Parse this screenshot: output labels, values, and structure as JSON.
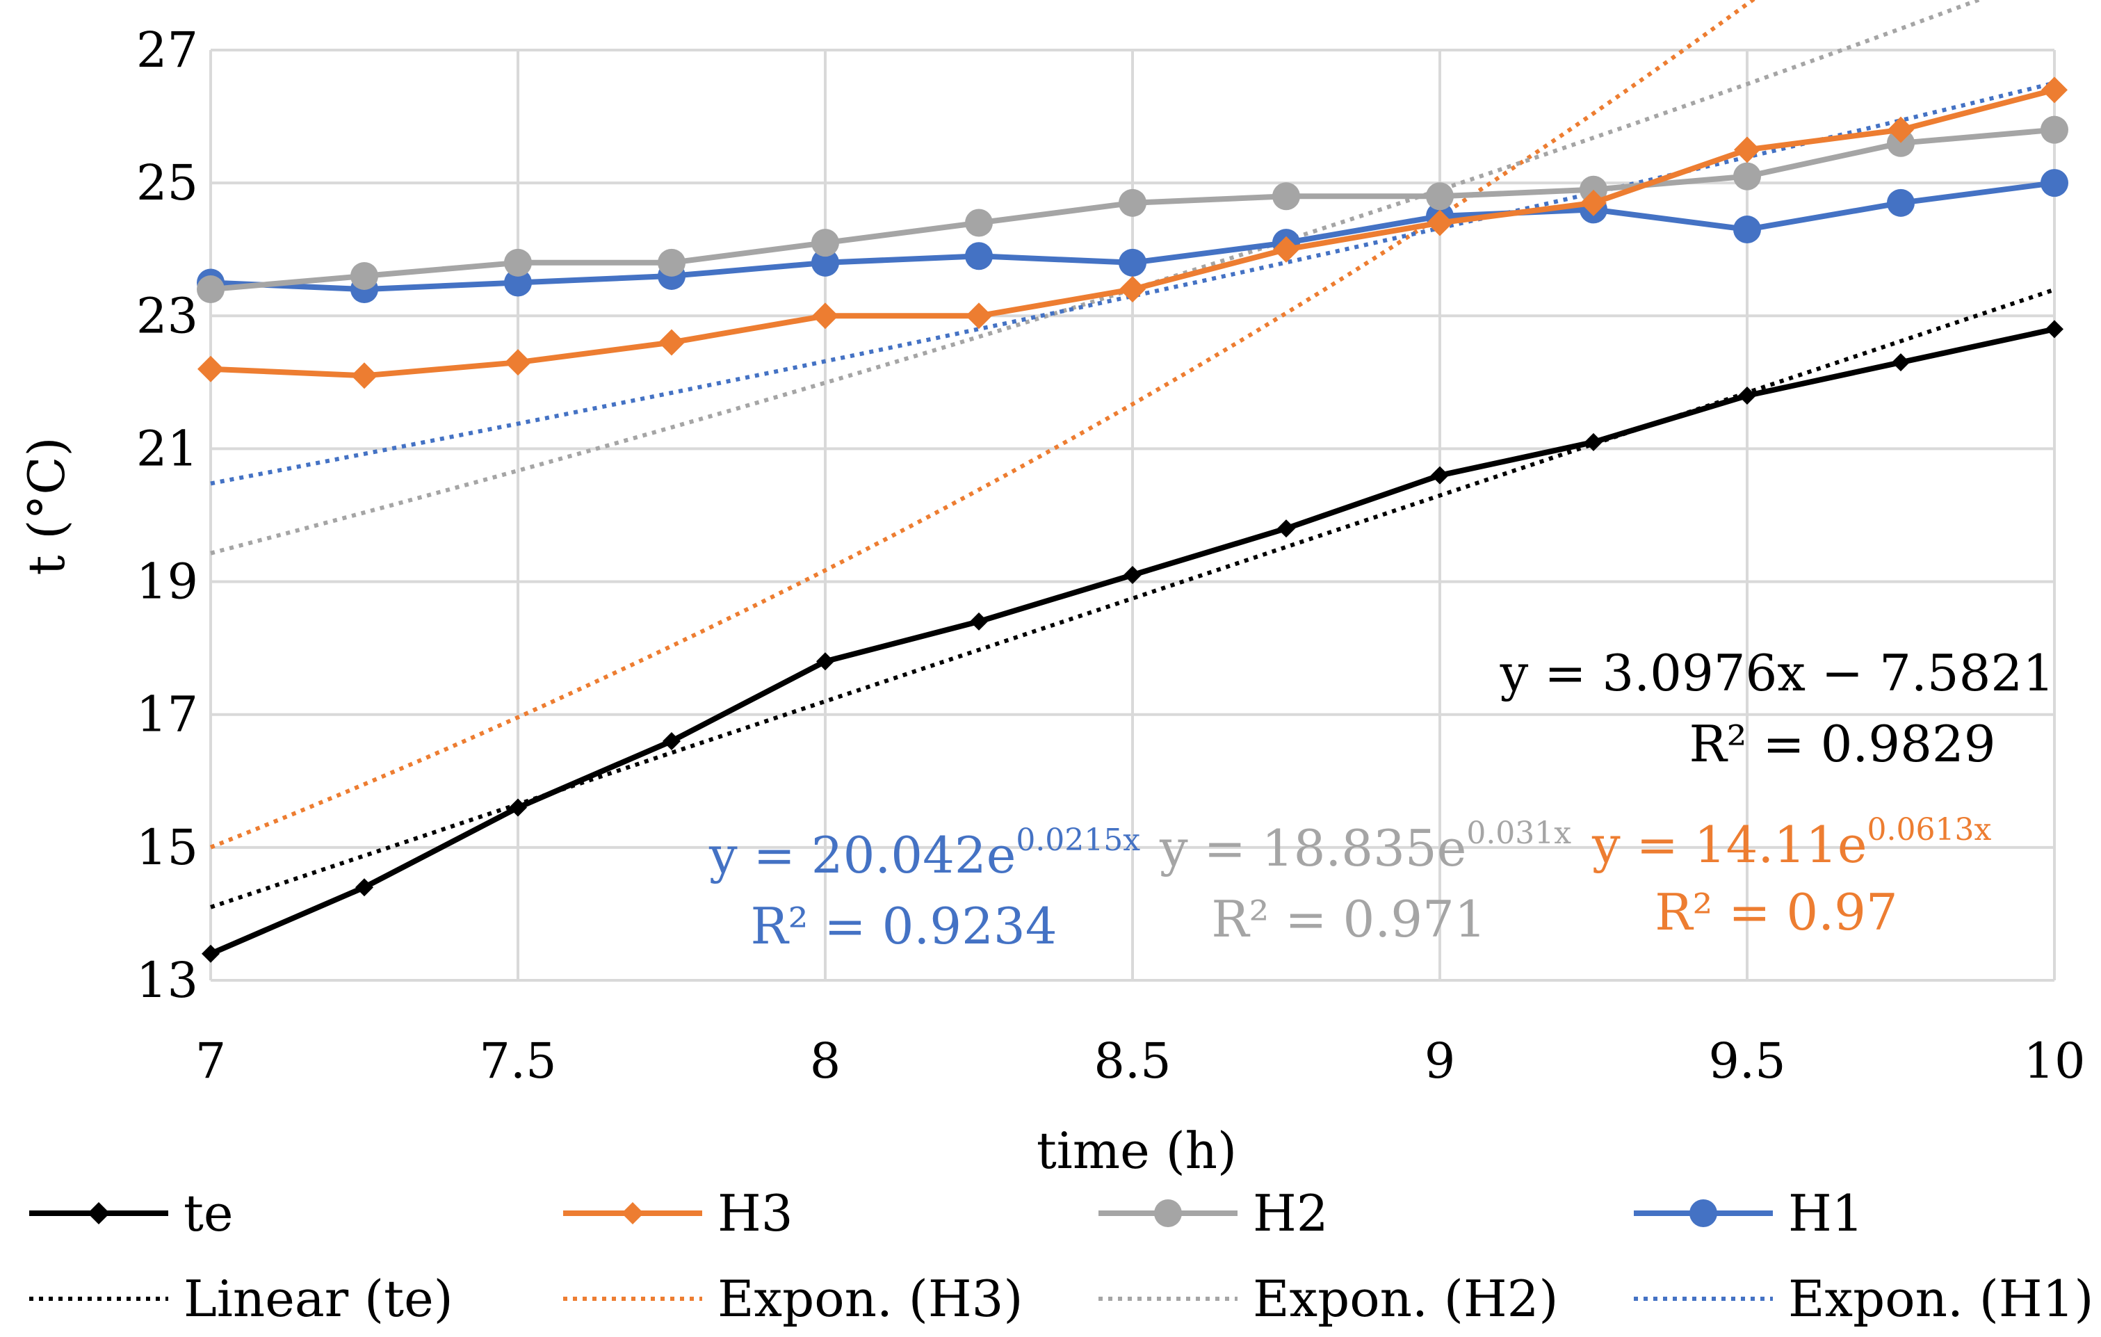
{
  "chart_data": {
    "type": "line",
    "title": "",
    "xlabel": "time (h)",
    "ylabel": "t (°C)",
    "xlim": [
      7,
      10
    ],
    "ylim": [
      13,
      27
    ],
    "xticks": [
      "7",
      "7.5",
      "8",
      "8.5",
      "9",
      "9.5",
      "10"
    ],
    "yticks": [
      "13",
      "15",
      "17",
      "19",
      "21",
      "23",
      "25",
      "27"
    ],
    "grid": true,
    "x": [
      7,
      7.25,
      7.5,
      7.75,
      8,
      8.25,
      8.5,
      8.75,
      9,
      9.25,
      9.5,
      9.75,
      10
    ],
    "series": [
      {
        "name": "te",
        "color": "#000000",
        "marker": "diamond",
        "values": [
          13.4,
          14.4,
          15.6,
          16.6,
          17.8,
          18.4,
          19.1,
          19.8,
          20.6,
          21.1,
          21.8,
          22.3,
          22.8
        ]
      },
      {
        "name": "H3",
        "color": "#ED7D31",
        "marker": "diamond",
        "values": [
          22.2,
          22.1,
          22.3,
          22.6,
          23.0,
          23.0,
          23.4,
          24.0,
          24.4,
          24.7,
          25.5,
          25.8,
          26.4
        ]
      },
      {
        "name": "H2",
        "color": "#A5A5A5",
        "marker": "circle",
        "values": [
          23.4,
          23.6,
          23.8,
          23.8,
          24.1,
          24.4,
          24.7,
          24.8,
          24.8,
          24.9,
          25.1,
          25.6,
          25.8
        ]
      },
      {
        "name": "H1",
        "color": "#4472C4",
        "marker": "circle",
        "values": [
          23.5,
          23.4,
          23.5,
          23.6,
          23.8,
          23.9,
          23.8,
          24.1,
          24.5,
          24.6,
          24.3,
          24.7,
          25.0
        ]
      }
    ],
    "trendlines": [
      {
        "name": "Linear (te)",
        "of": "te",
        "kind": "linear",
        "color": "#000000",
        "a": 3.0976,
        "b": -7.5821,
        "equation": "y = 3.0976x − 7.5821",
        "r2": "R² = 0.9829"
      },
      {
        "name": "Expon. (H3)",
        "of": "H3",
        "kind": "exp",
        "color": "#ED7D31",
        "a": 14.11,
        "b": 0.0613,
        "eq_base": "y = 14.11e",
        "eq_exp": "0.0613x",
        "r2": "R² = 0.97"
      },
      {
        "name": "Expon. (H2)",
        "of": "H2",
        "kind": "exp",
        "color": "#A5A5A5",
        "a": 18.835,
        "b": 0.031,
        "eq_base": "y = 18.835e",
        "eq_exp": "0.031x",
        "r2": "R² = 0.971"
      },
      {
        "name": "Expon. (H1)",
        "of": "H1",
        "kind": "exp",
        "color": "#4472C4",
        "a": 20.042,
        "b": 0.0215,
        "eq_base": "y = 20.042e",
        "eq_exp": "0.0215x",
        "r2": "R² = 0.9234"
      }
    ],
    "legend": {
      "position": "bottom",
      "entries": [
        "te",
        "H3",
        "H2",
        "H1",
        "Linear (te)",
        "Expon. (H3)",
        "Expon. (H2)",
        "Expon. (H1)"
      ]
    }
  }
}
